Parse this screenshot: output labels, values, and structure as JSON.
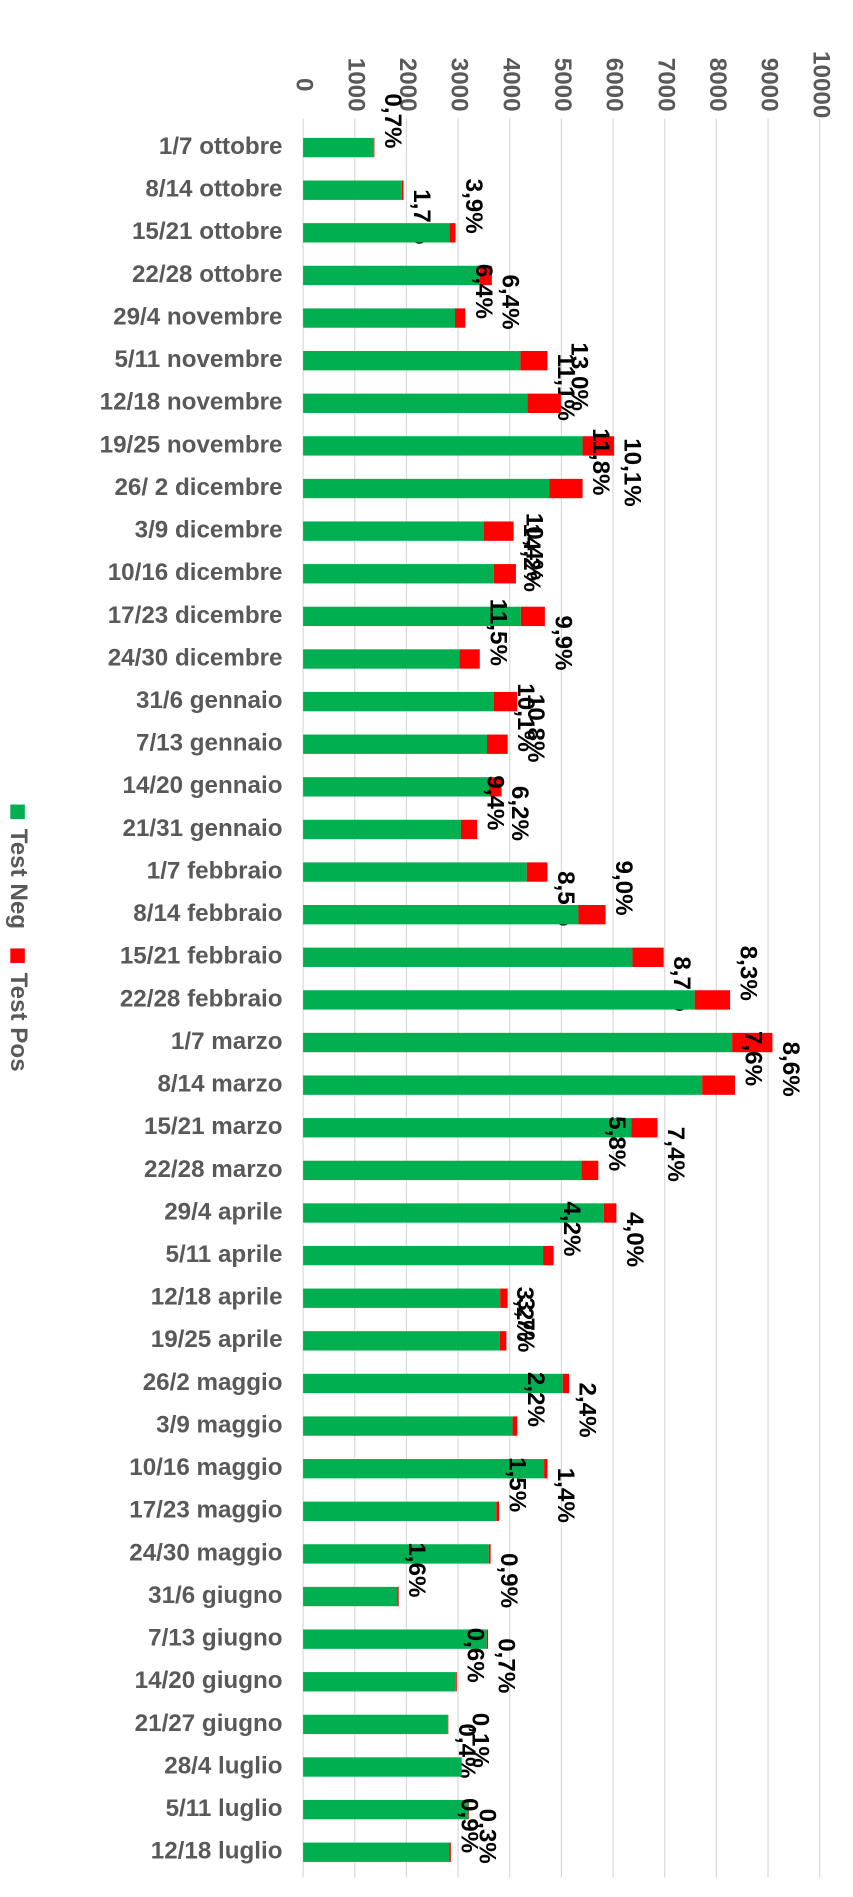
{
  "chart_data": {
    "type": "bar",
    "orientation": "horizontal",
    "stacked": true,
    "categories": [
      "1/7 ottobre",
      "8/14 ottobre",
      "15/21 ottobre",
      "22/28 ottobre",
      "29/4 novembre",
      "5/11 novembre",
      "12/18 novembre",
      "19/25 novembre",
      "26/ 2 dicembre",
      "3/9 dicembre",
      "10/16 dicembre",
      "17/23 dicembre",
      "24/30 dicembre",
      "31/6 gennaio",
      "7/13 gennaio",
      "14/20 gennaio",
      "21/31 gennaio",
      "1/7 febbraio",
      "8/14 febbraio",
      "15/21 febbraio",
      "22/28 febbraio",
      "1/7 marzo",
      "8/14 marzo",
      "15/21 marzo",
      "22/28 marzo",
      "29/4 aprile",
      "5/11 aprile",
      "12/18 aprile",
      "19/25 aprile",
      "26/2 maggio",
      "3/9 maggio",
      "10/16 maggio",
      "17/23 maggio",
      "24/30 maggio",
      "31/6 giugno",
      "7/13 giugno",
      "14/20 giugno",
      "21/27 giugno",
      "28/4 luglio",
      "5/11 luglio",
      "12/18 luglio"
    ],
    "series": [
      {
        "name": "Test Neg",
        "color": "#00b050",
        "values": [
          1370,
          1910,
          2835,
          3420,
          2940,
          4205,
          4340,
          5410,
          4770,
          3495,
          3690,
          4215,
          3025,
          3695,
          3560,
          3600,
          3055,
          4330,
          5330,
          6375,
          7580,
          8305,
          7725,
          6350,
          5385,
          5820,
          4645,
          3815,
          3810,
          5025,
          4055,
          4665,
          3740,
          3595,
          1820,
          3555,
          2957,
          2800,
          3067,
          3200,
          2834
        ]
      },
      {
        "name": "Test Pos",
        "color": "#ff0000",
        "values": [
          10,
          33,
          115,
          234,
          200,
          525,
          650,
          610,
          640,
          580,
          430,
          465,
          395,
          450,
          400,
          240,
          315,
          400,
          525,
          605,
          685,
          780,
          635,
          510,
          330,
          245,
          205,
          145,
          125,
          125,
          90,
          65,
          55,
          35,
          30,
          25,
          18,
          11,
          3,
          10,
          26
        ]
      }
    ],
    "data_labels": [
      "0,7%",
      "1,7%",
      "3,9%",
      "6,4%",
      "6,4%",
      "11,1%",
      "13,0%",
      "10,1%",
      "11,8%",
      "14,2%",
      "10,4%",
      "9,9%",
      "11,5%",
      "10,8%",
      "10,1%",
      "6,2%",
      "9,4%",
      "8,5%",
      "9,0%",
      "8,7%",
      "8,3%",
      "8,6%",
      "7,6%",
      "7,4%",
      "5,8%",
      "4,0%",
      "4,2%",
      "3,7%",
      "3,2%",
      "2,4%",
      "2,2%",
      "1,4%",
      "1,5%",
      "0,9%",
      "1,6%",
      "0,7%",
      "0,6%",
      "0,4%",
      "0,1%",
      "0,3%",
      "0,9%"
    ],
    "xlim": [
      0,
      10000
    ],
    "xticks": [
      0,
      1000,
      2000,
      3000,
      4000,
      5000,
      6000,
      7000,
      8000,
      9000,
      10000
    ],
    "grid": true
  }
}
